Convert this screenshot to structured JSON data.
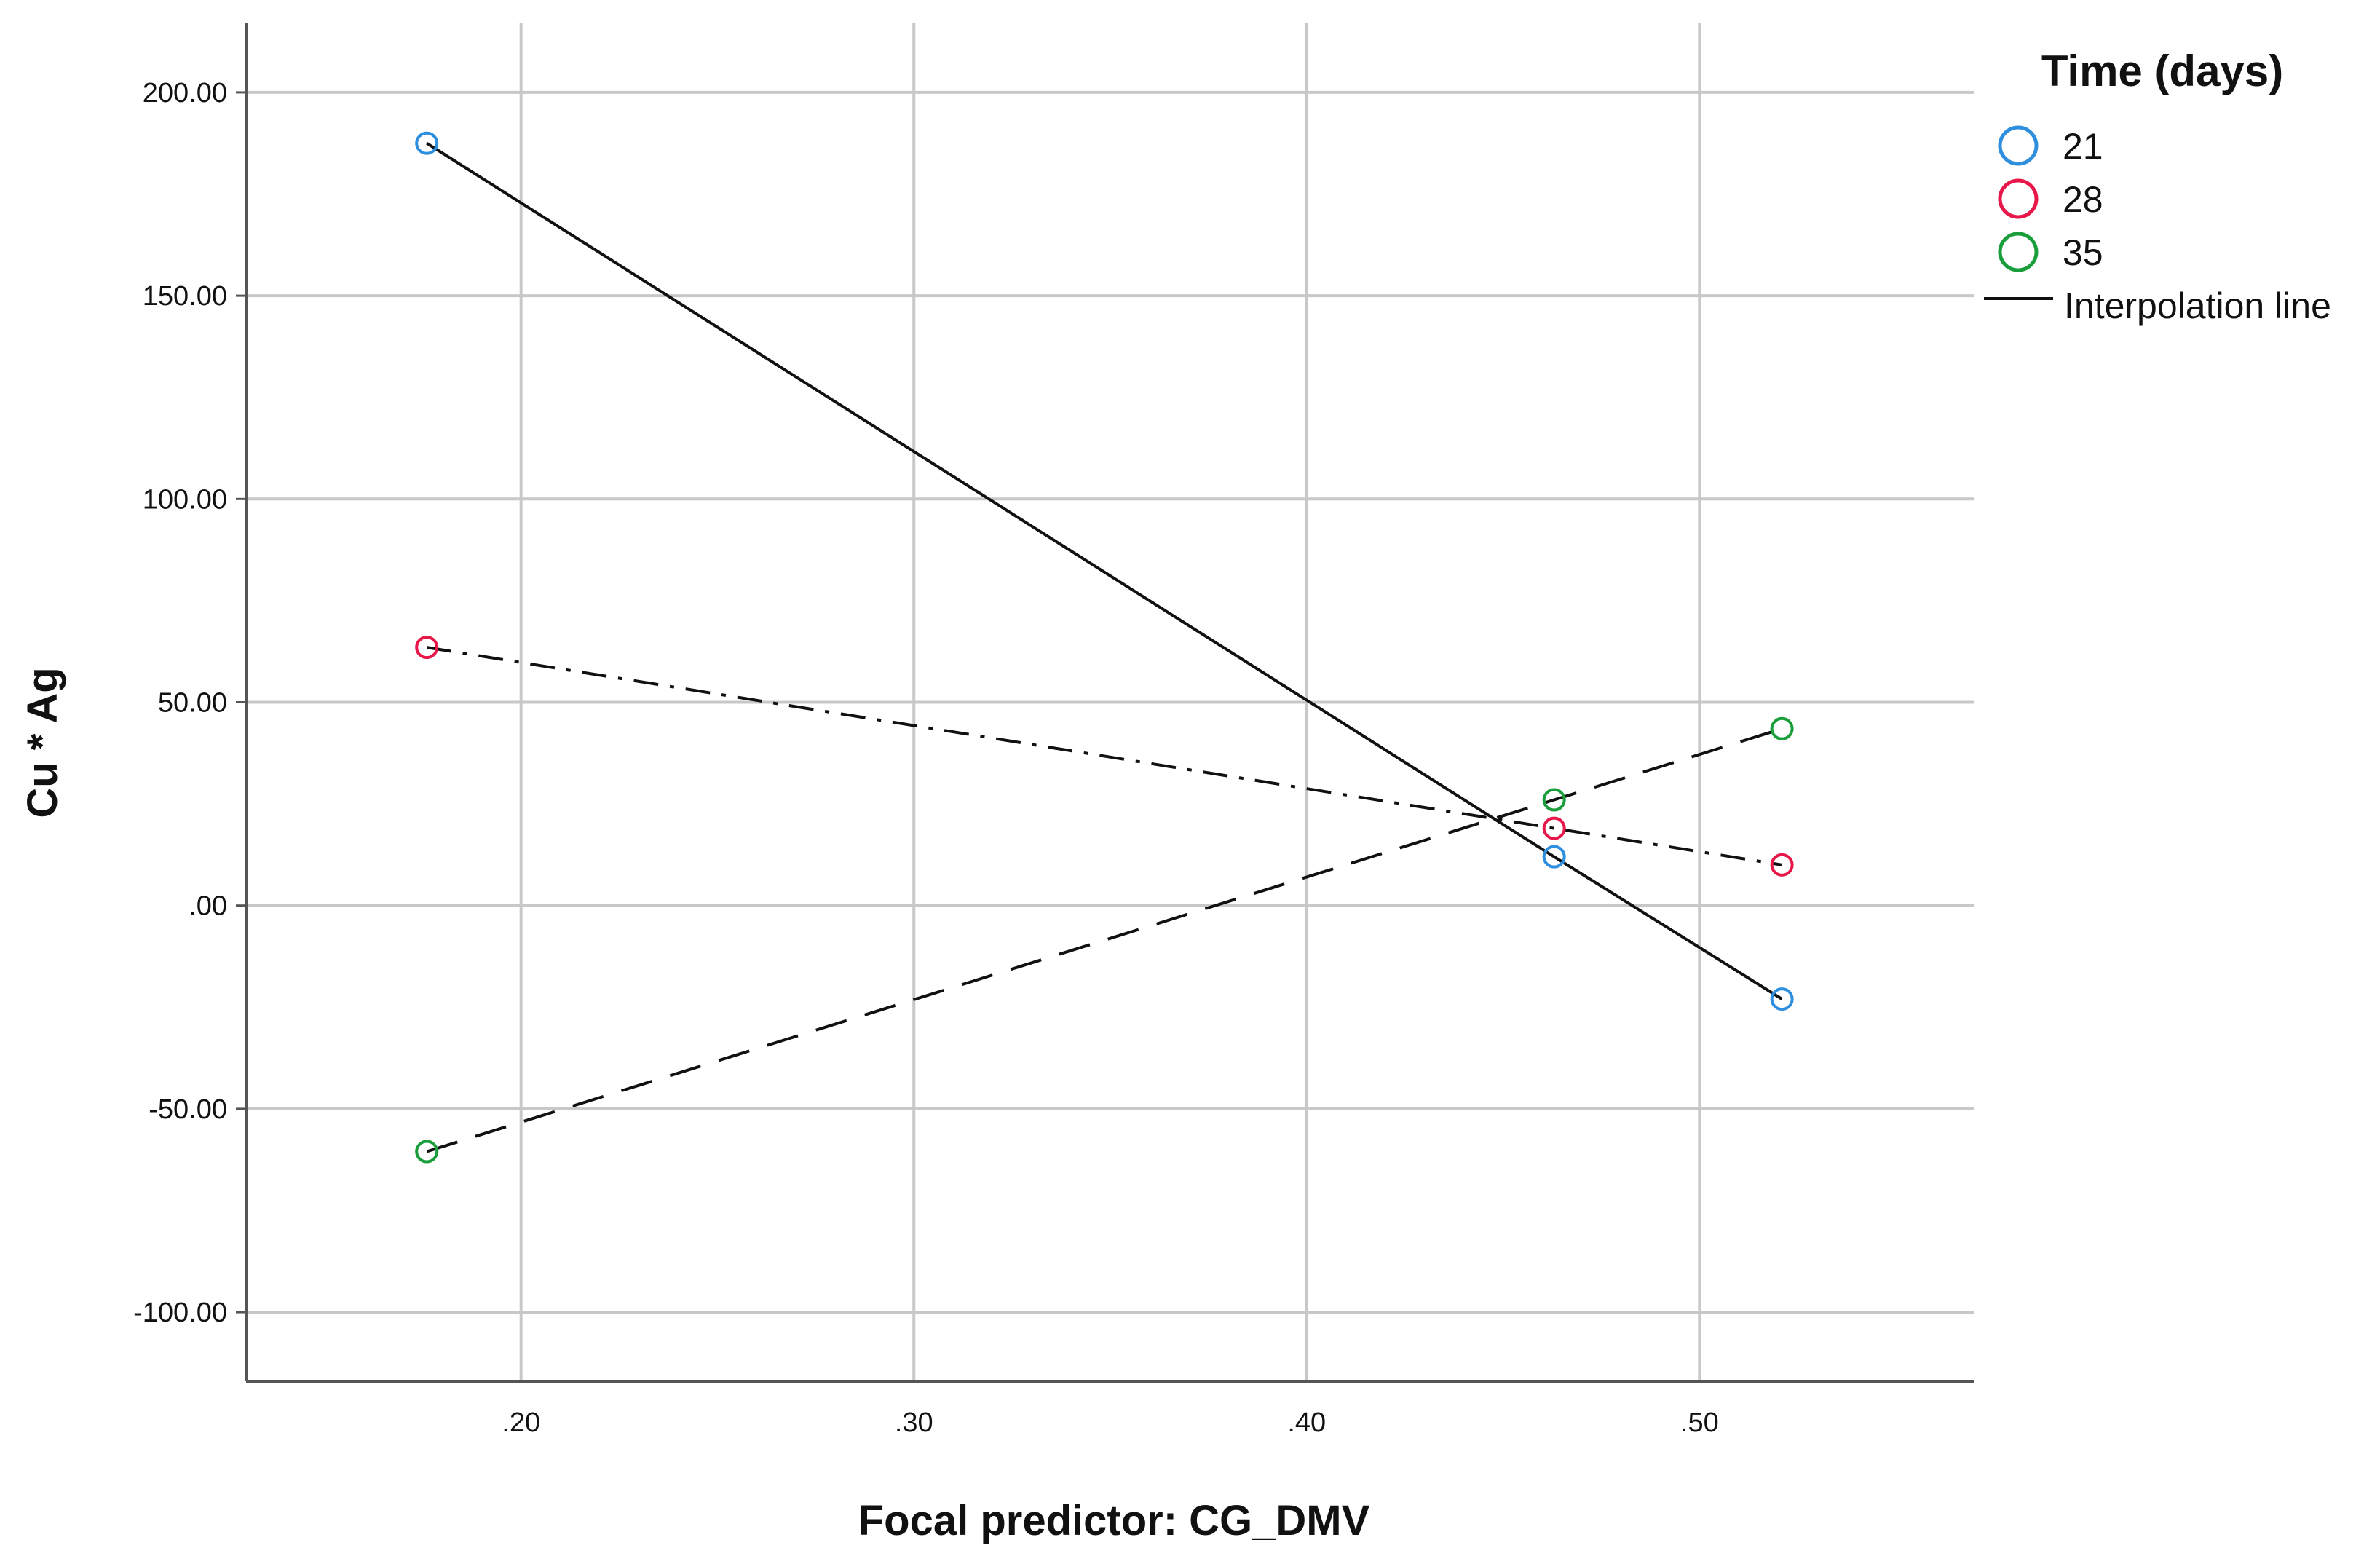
{
  "chart_data": {
    "type": "line",
    "xlabel": "Focal predictor: CG_DMV",
    "ylabel": "Cu * Ag",
    "xlim": [
      0.13,
      0.57
    ],
    "ylim": [
      -117,
      217
    ],
    "x_ticks": [
      0.2,
      0.3,
      0.4,
      0.5
    ],
    "x_tick_labels": [
      ".20",
      ".30",
      ".40",
      ".50"
    ],
    "y_ticks": [
      200,
      150,
      100,
      50,
      0,
      -50,
      -100
    ],
    "y_tick_labels": [
      "200.00",
      "150.00",
      "100.00",
      "50.00",
      ".00",
      "-50.00",
      "-100.00"
    ],
    "grid": true,
    "legend": {
      "title": "Time (days)",
      "position": "right",
      "interpolation_label": "Interpolation line"
    },
    "series": [
      {
        "name": "21",
        "color": "#2f8fdf",
        "line_style": "solid",
        "x": [
          0.176,
          0.463,
          0.521
        ],
        "y": [
          187.5,
          12.0,
          -23.0
        ]
      },
      {
        "name": "28",
        "color": "#e8174a",
        "line_style": "dashdot",
        "x": [
          0.176,
          0.463,
          0.521
        ],
        "y": [
          63.5,
          19.0,
          10.0
        ]
      },
      {
        "name": "35",
        "color": "#1a9e3c",
        "line_style": "dashed",
        "x": [
          0.176,
          0.463,
          0.521
        ],
        "y": [
          -60.5,
          26.0,
          43.5
        ]
      }
    ]
  }
}
